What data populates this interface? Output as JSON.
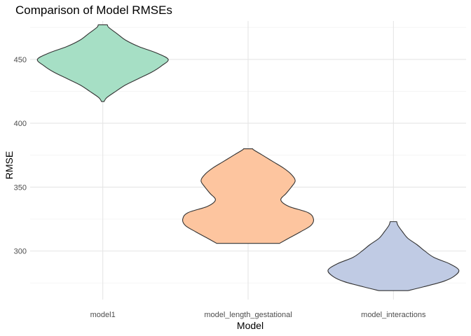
{
  "chart_data": {
    "type": "violin",
    "title": "Comparison of Model RMSEs",
    "xlabel": "Model",
    "ylabel": "RMSE",
    "ylim": [
      262,
      480
    ],
    "y_ticks": [
      300,
      350,
      400,
      450
    ],
    "categories": [
      "model1",
      "model_length_gestational",
      "model_interactions"
    ],
    "fill_colors": [
      "#a6dfc5",
      "#fdc59f",
      "#c0cbe4"
    ],
    "grid": true,
    "legend": "none",
    "violins": [
      {
        "category": "model1",
        "min": 417,
        "max": 477,
        "density": [
          [
            417,
            0.02
          ],
          [
            420,
            0.06
          ],
          [
            425,
            0.2
          ],
          [
            430,
            0.35
          ],
          [
            435,
            0.55
          ],
          [
            440,
            0.75
          ],
          [
            445,
            0.9
          ],
          [
            450,
            1.0
          ],
          [
            455,
            0.82
          ],
          [
            460,
            0.55
          ],
          [
            465,
            0.35
          ],
          [
            470,
            0.22
          ],
          [
            475,
            0.09
          ],
          [
            477,
            0.07
          ]
        ]
      },
      {
        "category": "model_length_gestational",
        "min": 306,
        "max": 380,
        "density": [
          [
            306,
            0.48
          ],
          [
            310,
            0.62
          ],
          [
            315,
            0.8
          ],
          [
            320,
            0.96
          ],
          [
            325,
            1.0
          ],
          [
            330,
            0.92
          ],
          [
            335,
            0.62
          ],
          [
            340,
            0.5
          ],
          [
            345,
            0.58
          ],
          [
            350,
            0.66
          ],
          [
            355,
            0.72
          ],
          [
            360,
            0.66
          ],
          [
            365,
            0.54
          ],
          [
            370,
            0.38
          ],
          [
            375,
            0.22
          ],
          [
            379,
            0.09
          ],
          [
            380,
            0.07
          ]
        ]
      },
      {
        "category": "model_interactions",
        "min": 269,
        "max": 323,
        "density": [
          [
            269,
            0.22
          ],
          [
            272,
            0.46
          ],
          [
            276,
            0.75
          ],
          [
            280,
            0.92
          ],
          [
            285,
            1.0
          ],
          [
            290,
            0.86
          ],
          [
            295,
            0.62
          ],
          [
            300,
            0.48
          ],
          [
            305,
            0.36
          ],
          [
            310,
            0.22
          ],
          [
            315,
            0.14
          ],
          [
            320,
            0.07
          ],
          [
            323,
            0.05
          ]
        ]
      }
    ]
  }
}
